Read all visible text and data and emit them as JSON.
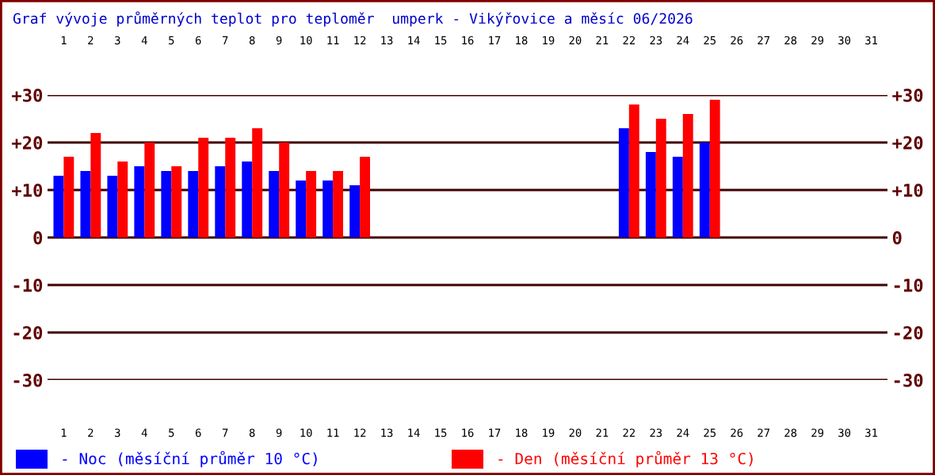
{
  "chart_data": {
    "type": "bar",
    "title": "Graf vývoje průměrných teplot pro teploměr  umperk - Vikýřovice a měsíc 06/2026",
    "categories": [
      "1",
      "2",
      "3",
      "4",
      "5",
      "6",
      "7",
      "8",
      "9",
      "10",
      "11",
      "12",
      "13",
      "14",
      "15",
      "16",
      "17",
      "18",
      "19",
      "20",
      "21",
      "22",
      "23",
      "24",
      "25",
      "26",
      "27",
      "28",
      "29",
      "30",
      "31"
    ],
    "series": [
      {
        "name": "- Noc (měsíční průměr 10 °C)",
        "color": "#0000ff",
        "values": [
          13,
          14,
          13,
          15,
          14,
          14,
          15,
          16,
          14,
          12,
          12,
          11,
          null,
          null,
          null,
          null,
          null,
          null,
          null,
          null,
          null,
          23,
          18,
          17,
          20,
          null,
          null,
          null,
          null,
          null,
          null
        ]
      },
      {
        "name": "- Den (měsíční průměr 13 °C)",
        "color": "#ff0000",
        "values": [
          17,
          22,
          16,
          20,
          15,
          21,
          21,
          23,
          20,
          14,
          14,
          17,
          null,
          null,
          null,
          null,
          null,
          null,
          null,
          null,
          null,
          28,
          25,
          26,
          29,
          null,
          null,
          null,
          null,
          null,
          null
        ]
      }
    ],
    "ylim": [
      -30,
      30
    ],
    "yticks": [
      {
        "value": 30,
        "label": "+30"
      },
      {
        "value": 20,
        "label": "+20"
      },
      {
        "value": 10,
        "label": "+10"
      },
      {
        "value": 0,
        "label": "0"
      },
      {
        "value": -10,
        "label": "-10"
      },
      {
        "value": -20,
        "label": "-20"
      },
      {
        "value": -30,
        "label": "-30"
      }
    ],
    "grid": "y",
    "legend": "bottom"
  }
}
